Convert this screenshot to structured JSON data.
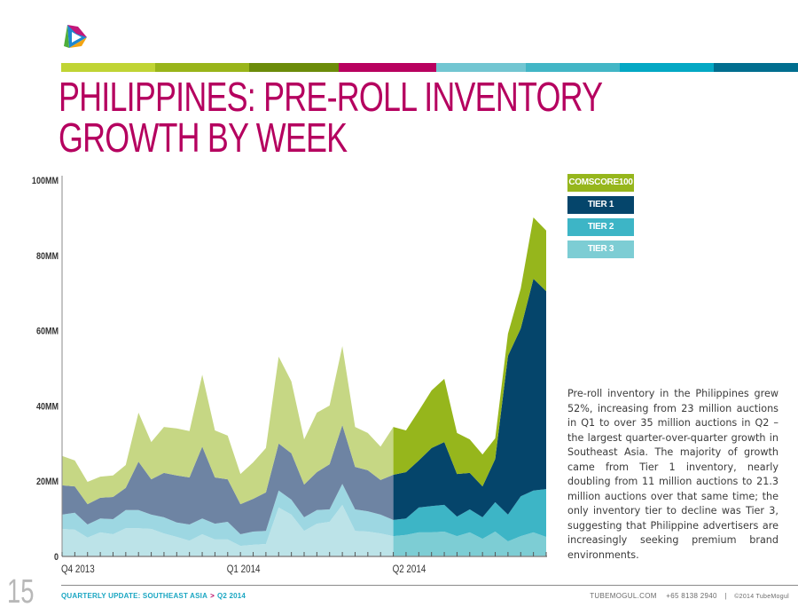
{
  "header": {
    "logo_icon": "tubemogul-triangle-logo",
    "color_bar": [
      "#c0d434",
      "#99b51a",
      "#6c8c0a",
      "#b8005f",
      "#72c6d2",
      "#42b6c6",
      "#04a8c4",
      "#006e8f"
    ]
  },
  "title": {
    "line1": "PHILIPPINES: PRE-ROLL INVENTORY",
    "line2": "GROWTH BY WEEK",
    "color": "#b5005f"
  },
  "legend": [
    {
      "label": "COMSCORE100",
      "color": "#96b61c"
    },
    {
      "label": "TIER 1",
      "color": "#05456b"
    },
    {
      "label": "TIER 2",
      "color": "#3db5c6"
    },
    {
      "label": "TIER 3",
      "color": "#7dcdd4"
    }
  ],
  "description": "Pre-roll inventory in the Philippines grew 52%, increasing from 23 million auctions in Q1 to over 35 million auctions in Q2 – the largest quarter-over-quarter growth in Southeast Asia. The majority of growth came from Tier 1 inventory, nearly doubling from 11 million auctions to 21.3 million auctions over that same time; the only inventory tier to decline was Tier 3, suggesting that Philippine advertisers are increasingly seeking premium brand environments.",
  "footer": {
    "page_number": "15",
    "section": "QUARTERLY UPDATE: SOUTHEAST ASIA",
    "separator": ">",
    "period": "Q2 2014",
    "website": "TUBEMOGUL.COM",
    "phone": "+65 8138 2940",
    "pipe": "|",
    "copyright": "©2014 TubeMogul"
  },
  "chart_data": {
    "type": "area",
    "stacked": true,
    "title": "PHILIPPINES: PRE-ROLL INVENTORY GROWTH BY WEEK",
    "xlabel": "",
    "ylabel": "",
    "ylim": [
      0,
      100
    ],
    "y_unit": "MM",
    "y_ticks": [
      "0",
      "20MM",
      "40MM",
      "60MM",
      "80MM",
      "100MM"
    ],
    "y_tick_values": [
      0,
      20,
      40,
      60,
      80,
      100
    ],
    "x_count": 39,
    "x_tick_labels": [
      {
        "index": 0,
        "label": "Q4 2013"
      },
      {
        "index": 13,
        "label": "Q1 2014"
      },
      {
        "index": 26,
        "label": "Q2 2014"
      }
    ],
    "highlight_from_index": 26,
    "grid": false,
    "legend_position": "right",
    "series": [
      {
        "name": "TIER 3",
        "muted_color": "#bce3e8",
        "color": "#7dcdd4",
        "values": [
          7.3,
          7.1,
          5.0,
          6.4,
          5.9,
          7.5,
          7.5,
          7.3,
          6.1,
          5.2,
          4.2,
          5.9,
          4.5,
          4.5,
          2.8,
          3.1,
          3.3,
          13.0,
          11.1,
          6.8,
          8.7,
          9.2,
          13.7,
          6.8,
          6.6,
          6.1,
          5.4,
          5.7,
          6.4,
          6.4,
          6.6,
          5.4,
          6.4,
          4.7,
          6.6,
          4.0,
          5.4,
          6.4,
          5.2
        ]
      },
      {
        "name": "TIER 2",
        "muted_color": "#9dd7e2",
        "color": "#3db5c6",
        "values": [
          3.8,
          4.5,
          3.5,
          3.7,
          4.0,
          4.8,
          4.8,
          3.8,
          4.3,
          3.8,
          4.3,
          4.2,
          4.2,
          4.7,
          3.1,
          3.5,
          3.5,
          4.5,
          4.0,
          3.6,
          3.6,
          3.3,
          5.6,
          5.7,
          5.4,
          5.0,
          4.3,
          4.4,
          6.6,
          7.0,
          7.1,
          5.2,
          6.1,
          5.7,
          7.8,
          7.1,
          10.6,
          11.1,
          12.7
        ]
      },
      {
        "name": "TIER 1",
        "muted_color": "#6e84a3",
        "color": "#05456b",
        "values": [
          7.8,
          7.0,
          5.4,
          5.5,
          5.9,
          5.9,
          12.9,
          9.4,
          11.8,
          12.5,
          12.5,
          19.1,
          12.3,
          11.3,
          8.0,
          8.7,
          10.2,
          12.5,
          12.3,
          8.7,
          10.1,
          12.0,
          15.6,
          11.3,
          10.9,
          9.2,
          12.0,
          12.3,
          12.5,
          15.4,
          16.7,
          11.3,
          9.7,
          8.2,
          11.5,
          42.2,
          44.6,
          56.3,
          52.6
        ]
      },
      {
        "name": "COMSCORE100",
        "muted_color": "#c6d784",
        "color": "#96b61c",
        "values": [
          7.8,
          6.9,
          5.9,
          5.6,
          5.7,
          6.1,
          13.0,
          9.9,
          12.2,
          12.5,
          12.3,
          19.1,
          12.5,
          11.6,
          8.0,
          9.7,
          11.8,
          23.1,
          19.1,
          12.0,
          15.8,
          15.6,
          21.0,
          10.6,
          9.9,
          8.9,
          12.7,
          11.1,
          13.2,
          15.3,
          16.8,
          10.9,
          8.9,
          8.5,
          5.5,
          5.9,
          10.6,
          16.3,
          16.1
        ]
      }
    ]
  }
}
